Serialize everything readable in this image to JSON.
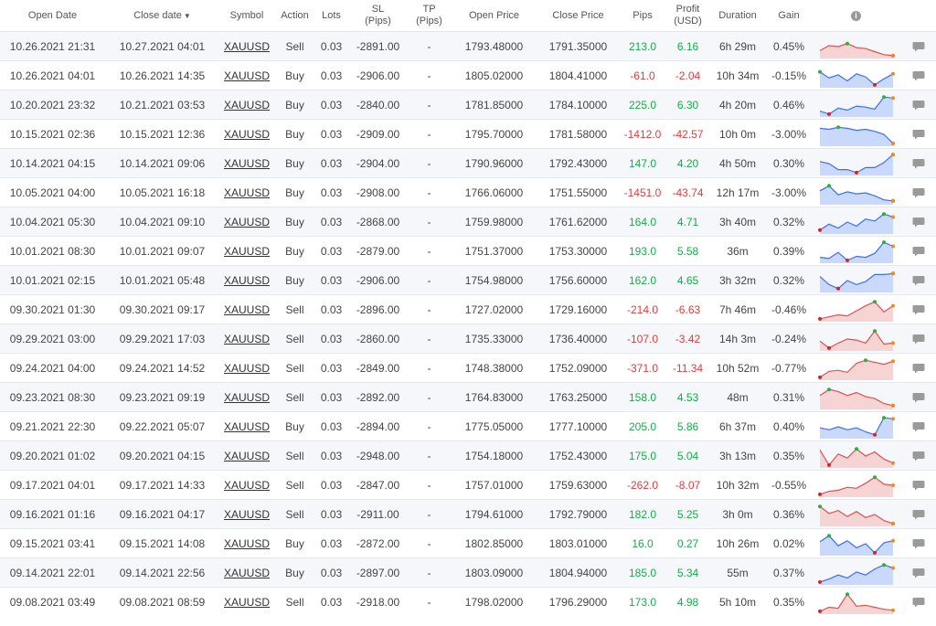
{
  "table": {
    "headers": {
      "open_date": "Open Date",
      "close_date": "Close date",
      "sort_arrow": "▼",
      "symbol": "Symbol",
      "action": "Action",
      "lots": "Lots",
      "sl_line1": "SL",
      "sl_line2": "(Pips)",
      "tp_line1": "TP",
      "tp_line2": "(Pips)",
      "open_price": "Open Price",
      "close_price": "Close Price",
      "pips": "Pips",
      "profit_line1": "Profit",
      "profit_line2": "(USD)",
      "duration": "Duration",
      "gain": "Gain",
      "info_icon": "i"
    },
    "colors": {
      "positive": "#1aab4a",
      "negative": "#e33b3b",
      "spark_buy_fill": "#c9d9fb",
      "spark_buy_line": "#3f6ee8",
      "spark_sell_fill": "#f6d4d4",
      "spark_sell_line": "#d9534f"
    },
    "icons": {
      "comment": "comment-icon",
      "info": "info-icon"
    },
    "rows": [
      {
        "open": "10.26.2021 21:31",
        "close": "10.27.2021 04:01",
        "symbol": "XAUUSD",
        "action": "Sell",
        "lots": "0.03",
        "sl": "-2891.00",
        "tp": "-",
        "open_price": "1793.48000",
        "close_price": "1791.35000",
        "pips": "213.0",
        "profit": "6.16",
        "duration": "6h 29m",
        "gain": "0.45%",
        "spark": [
          30,
          55,
          50,
          65,
          45,
          40,
          25,
          10,
          5
        ]
      },
      {
        "open": "10.26.2021 04:01",
        "close": "10.26.2021 14:35",
        "symbol": "XAUUSD",
        "action": "Buy",
        "lots": "0.03",
        "sl": "-2906.00",
        "tp": "-",
        "open_price": "1805.02000",
        "close_price": "1804.41000",
        "pips": "-61.0",
        "profit": "-2.04",
        "duration": "10h 34m",
        "gain": "-0.15%",
        "spark": [
          70,
          40,
          55,
          25,
          60,
          45,
          5,
          35,
          60
        ]
      },
      {
        "open": "10.20.2021 23:32",
        "close": "10.21.2021 03:53",
        "symbol": "XAUUSD",
        "action": "Buy",
        "lots": "0.03",
        "sl": "-2840.00",
        "tp": "-",
        "open_price": "1781.85000",
        "close_price": "1784.10000",
        "pips": "225.0",
        "profit": "6.30",
        "duration": "4h 20m",
        "gain": "0.46%",
        "spark": [
          20,
          5,
          35,
          25,
          45,
          40,
          30,
          90,
          85
        ]
      },
      {
        "open": "10.15.2021 02:36",
        "close": "10.15.2021 12:36",
        "symbol": "XAUUSD",
        "action": "Buy",
        "lots": "0.03",
        "sl": "-2909.00",
        "tp": "-",
        "open_price": "1795.70000",
        "close_price": "1781.58000",
        "pips": "-1412.0",
        "profit": "-42.57",
        "duration": "10h 0m",
        "gain": "-3.00%",
        "spark": [
          80,
          75,
          85,
          80,
          70,
          75,
          65,
          50,
          5
        ]
      },
      {
        "open": "10.14.2021 04:15",
        "close": "10.14.2021 09:06",
        "symbol": "XAUUSD",
        "action": "Buy",
        "lots": "0.03",
        "sl": "-2904.00",
        "tp": "-",
        "open_price": "1790.96000",
        "close_price": "1792.43000",
        "pips": "147.0",
        "profit": "4.20",
        "duration": "4h 50m",
        "gain": "0.30%",
        "spark": [
          60,
          50,
          20,
          20,
          5,
          30,
          30,
          55,
          95
        ]
      },
      {
        "open": "10.05.2021 04:00",
        "close": "10.05.2021 16:18",
        "symbol": "XAUUSD",
        "action": "Buy",
        "lots": "0.03",
        "sl": "-2908.00",
        "tp": "-",
        "open_price": "1766.06000",
        "close_price": "1751.55000",
        "pips": "-1451.0",
        "profit": "-43.74",
        "duration": "12h 17m",
        "gain": "-3.00%",
        "spark": [
          60,
          85,
          40,
          55,
          45,
          50,
          35,
          15,
          10
        ]
      },
      {
        "open": "10.04.2021 05:30",
        "close": "10.04.2021 09:10",
        "symbol": "XAUUSD",
        "action": "Buy",
        "lots": "0.03",
        "sl": "-2868.00",
        "tp": "-",
        "open_price": "1759.98000",
        "close_price": "1761.62000",
        "pips": "164.0",
        "profit": "4.71",
        "duration": "3h 40m",
        "gain": "0.32%",
        "spark": [
          10,
          40,
          20,
          50,
          30,
          65,
          55,
          90,
          75
        ]
      },
      {
        "open": "10.01.2021 08:30",
        "close": "10.01.2021 09:07",
        "symbol": "XAUUSD",
        "action": "Buy",
        "lots": "0.03",
        "sl": "-2879.00",
        "tp": "-",
        "open_price": "1751.37000",
        "close_price": "1753.30000",
        "pips": "193.0",
        "profit": "5.58",
        "duration": "36m",
        "gain": "0.39%",
        "spark": [
          20,
          15,
          45,
          5,
          25,
          20,
          40,
          95,
          75
        ]
      },
      {
        "open": "10.01.2021 02:15",
        "close": "10.01.2021 05:48",
        "symbol": "XAUUSD",
        "action": "Buy",
        "lots": "0.03",
        "sl": "-2906.00",
        "tp": "-",
        "open_price": "1754.98000",
        "close_price": "1756.60000",
        "pips": "162.0",
        "profit": "4.65",
        "duration": "3h 32m",
        "gain": "0.32%",
        "spark": [
          70,
          30,
          10,
          50,
          30,
          45,
          80,
          80,
          85
        ]
      },
      {
        "open": "09.30.2021 01:30",
        "close": "09.30.2021 09:17",
        "symbol": "XAUUSD",
        "action": "Sell",
        "lots": "0.03",
        "sl": "-2896.00",
        "tp": "-",
        "open_price": "1727.02000",
        "close_price": "1729.16000",
        "pips": "-214.0",
        "profit": "-6.63",
        "duration": "7h 46m",
        "gain": "-0.46%",
        "spark": [
          5,
          15,
          25,
          20,
          45,
          70,
          90,
          40,
          70
        ]
      },
      {
        "open": "09.29.2021 03:00",
        "close": "09.29.2021 17:03",
        "symbol": "XAUUSD",
        "action": "Sell",
        "lots": "0.03",
        "sl": "-2860.00",
        "tp": "-",
        "open_price": "1735.33000",
        "close_price": "1736.40000",
        "pips": "-107.0",
        "profit": "-3.42",
        "duration": "14h 3m",
        "gain": "-0.24%",
        "spark": [
          40,
          5,
          30,
          50,
          45,
          30,
          90,
          25,
          30
        ]
      },
      {
        "open": "09.24.2021 04:00",
        "close": "09.24.2021 14:52",
        "symbol": "XAUUSD",
        "action": "Sell",
        "lots": "0.03",
        "sl": "-2849.00",
        "tp": "-",
        "open_price": "1748.38000",
        "close_price": "1752.09000",
        "pips": "-371.0",
        "profit": "-11.34",
        "duration": "10h 52m",
        "gain": "-0.77%",
        "spark": [
          5,
          35,
          40,
          30,
          75,
          90,
          80,
          70,
          85
        ]
      },
      {
        "open": "09.23.2021 08:30",
        "close": "09.23.2021 09:19",
        "symbol": "XAUUSD",
        "action": "Sell",
        "lots": "0.03",
        "sl": "-2892.00",
        "tp": "-",
        "open_price": "1764.83000",
        "close_price": "1763.25000",
        "pips": "158.0",
        "profit": "4.53",
        "duration": "48m",
        "gain": "0.31%",
        "spark": [
          60,
          90,
          80,
          60,
          75,
          55,
          45,
          20,
          10
        ]
      },
      {
        "open": "09.21.2021 22:30",
        "close": "09.22.2021 05:07",
        "symbol": "XAUUSD",
        "action": "Buy",
        "lots": "0.03",
        "sl": "-2894.00",
        "tp": "-",
        "open_price": "1775.05000",
        "close_price": "1777.10000",
        "pips": "205.0",
        "profit": "5.86",
        "duration": "6h 37m",
        "gain": "0.40%",
        "spark": [
          45,
          35,
          50,
          35,
          45,
          25,
          10,
          95,
          90
        ]
      },
      {
        "open": "09.20.2021 01:02",
        "close": "09.20.2021 04:15",
        "symbol": "XAUUSD",
        "action": "Sell",
        "lots": "0.03",
        "sl": "-2948.00",
        "tp": "-",
        "open_price": "1754.18000",
        "close_price": "1752.43000",
        "pips": "175.0",
        "profit": "5.04",
        "duration": "3h 13m",
        "gain": "0.35%",
        "spark": [
          80,
          5,
          60,
          40,
          85,
          50,
          70,
          35,
          15
        ]
      },
      {
        "open": "09.17.2021 04:01",
        "close": "09.17.2021 14:33",
        "symbol": "XAUUSD",
        "action": "Sell",
        "lots": "0.03",
        "sl": "-2847.00",
        "tp": "-",
        "open_price": "1757.01000",
        "close_price": "1759.63000",
        "pips": "-262.0",
        "profit": "-8.07",
        "duration": "10h 32m",
        "gain": "-0.55%",
        "spark": [
          5,
          20,
          25,
          40,
          35,
          60,
          90,
          55,
          50
        ]
      },
      {
        "open": "09.16.2021 01:16",
        "close": "09.16.2021 04:17",
        "symbol": "XAUUSD",
        "action": "Sell",
        "lots": "0.03",
        "sl": "-2911.00",
        "tp": "-",
        "open_price": "1794.61000",
        "close_price": "1792.79000",
        "pips": "182.0",
        "profit": "5.25",
        "duration": "3h 0m",
        "gain": "0.36%",
        "spark": [
          90,
          55,
          70,
          40,
          65,
          35,
          50,
          20,
          5
        ]
      },
      {
        "open": "09.15.2021 03:41",
        "close": "09.15.2021 14:08",
        "symbol": "XAUUSD",
        "action": "Buy",
        "lots": "0.03",
        "sl": "-2872.00",
        "tp": "-",
        "open_price": "1802.85000",
        "close_price": "1803.01000",
        "pips": "16.0",
        "profit": "0.27",
        "duration": "10h 26m",
        "gain": "0.02%",
        "spark": [
          60,
          90,
          40,
          65,
          30,
          50,
          5,
          55,
          65
        ]
      },
      {
        "open": "09.14.2021 22:01",
        "close": "09.14.2021 22:56",
        "symbol": "XAUUSD",
        "action": "Buy",
        "lots": "0.03",
        "sl": "-2897.00",
        "tp": "-",
        "open_price": "1803.09000",
        "close_price": "1804.94000",
        "pips": "185.0",
        "profit": "5.34",
        "duration": "55m",
        "gain": "0.37%",
        "spark": [
          5,
          20,
          40,
          25,
          55,
          40,
          70,
          90,
          75
        ]
      },
      {
        "open": "09.08.2021 03:49",
        "close": "09.08.2021 08:59",
        "symbol": "XAUUSD",
        "action": "Sell",
        "lots": "0.03",
        "sl": "-2918.00",
        "tp": "-",
        "open_price": "1798.02000",
        "close_price": "1796.29000",
        "pips": "173.0",
        "profit": "4.98",
        "duration": "5h 10m",
        "gain": "0.35%",
        "spark": [
          5,
          25,
          20,
          90,
          30,
          35,
          25,
          15,
          10
        ]
      }
    ]
  }
}
